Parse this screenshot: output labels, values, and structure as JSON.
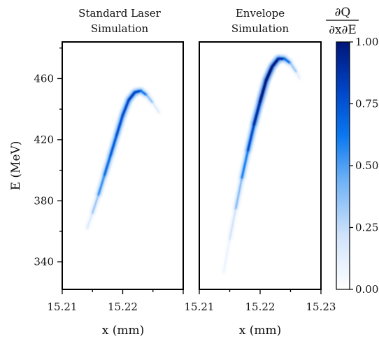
{
  "chart_data": [
    {
      "type": "heatmap",
      "title": "Standard Laser\nSimulation",
      "xlabel": "x (mm)",
      "ylabel": "E (MeV)",
      "xlim": [
        15.21,
        15.23
      ],
      "ylim": [
        322,
        484
      ],
      "x_ticks": [
        "15.21",
        "15.22"
      ],
      "x_tick_values": [
        15.21,
        15.22
      ],
      "y_ticks": [
        "460",
        "420",
        "380",
        "340"
      ],
      "y_tick_values": [
        460,
        420,
        380,
        340
      ],
      "curve": [
        {
          "x": 15.2141,
          "y": 362,
          "q": 0.1
        },
        {
          "x": 15.215,
          "y": 372,
          "q": 0.25
        },
        {
          "x": 15.216,
          "y": 384,
          "q": 0.45
        },
        {
          "x": 15.217,
          "y": 397,
          "q": 0.65
        },
        {
          "x": 15.218,
          "y": 410,
          "q": 0.7
        },
        {
          "x": 15.219,
          "y": 423,
          "q": 0.75
        },
        {
          "x": 15.22,
          "y": 436,
          "q": 0.78
        },
        {
          "x": 15.221,
          "y": 446,
          "q": 0.8
        },
        {
          "x": 15.222,
          "y": 451,
          "q": 0.85
        },
        {
          "x": 15.223,
          "y": 452,
          "q": 0.75
        },
        {
          "x": 15.224,
          "y": 449,
          "q": 0.5
        },
        {
          "x": 15.225,
          "y": 444,
          "q": 0.25
        },
        {
          "x": 15.226,
          "y": 438,
          "q": 0.08
        }
      ]
    },
    {
      "type": "heatmap",
      "title": "Envelope\nSimulation",
      "xlabel": "x (mm)",
      "xlim": [
        15.21,
        15.23
      ],
      "ylim": [
        322,
        484
      ],
      "x_ticks": [
        "15.21",
        "15.22",
        "15.23"
      ],
      "x_tick_values": [
        15.21,
        15.22,
        15.23
      ],
      "curve": [
        {
          "x": 15.214,
          "y": 333,
          "q": 0.05
        },
        {
          "x": 15.215,
          "y": 355,
          "q": 0.15
        },
        {
          "x": 15.216,
          "y": 375,
          "q": 0.3
        },
        {
          "x": 15.217,
          "y": 395,
          "q": 0.5
        },
        {
          "x": 15.218,
          "y": 413,
          "q": 0.7
        },
        {
          "x": 15.219,
          "y": 430,
          "q": 0.85
        },
        {
          "x": 15.22,
          "y": 445,
          "q": 0.95
        },
        {
          "x": 15.221,
          "y": 459,
          "q": 1.0
        },
        {
          "x": 15.222,
          "y": 468,
          "q": 1.0
        },
        {
          "x": 15.223,
          "y": 473,
          "q": 0.95
        },
        {
          "x": 15.224,
          "y": 473,
          "q": 0.8
        },
        {
          "x": 15.225,
          "y": 470,
          "q": 0.5
        },
        {
          "x": 15.226,
          "y": 464,
          "q": 0.2
        },
        {
          "x": 15.2265,
          "y": 460,
          "q": 0.08
        }
      ]
    }
  ],
  "colorbar": {
    "label": "∂Q / ∂x∂E",
    "label_numerator": "∂Q",
    "label_denominator": "∂x∂E",
    "range": [
      0,
      1
    ],
    "ticks": [
      "1.00",
      "0.75",
      "0.50",
      "0.25",
      "0.00"
    ],
    "tick_values": [
      1.0,
      0.75,
      0.5,
      0.25,
      0.0
    ],
    "colors": [
      "#ffffff",
      "#cfe2fb",
      "#6aaef5",
      "#0a78f0",
      "#0046c8",
      "#00157a"
    ]
  }
}
